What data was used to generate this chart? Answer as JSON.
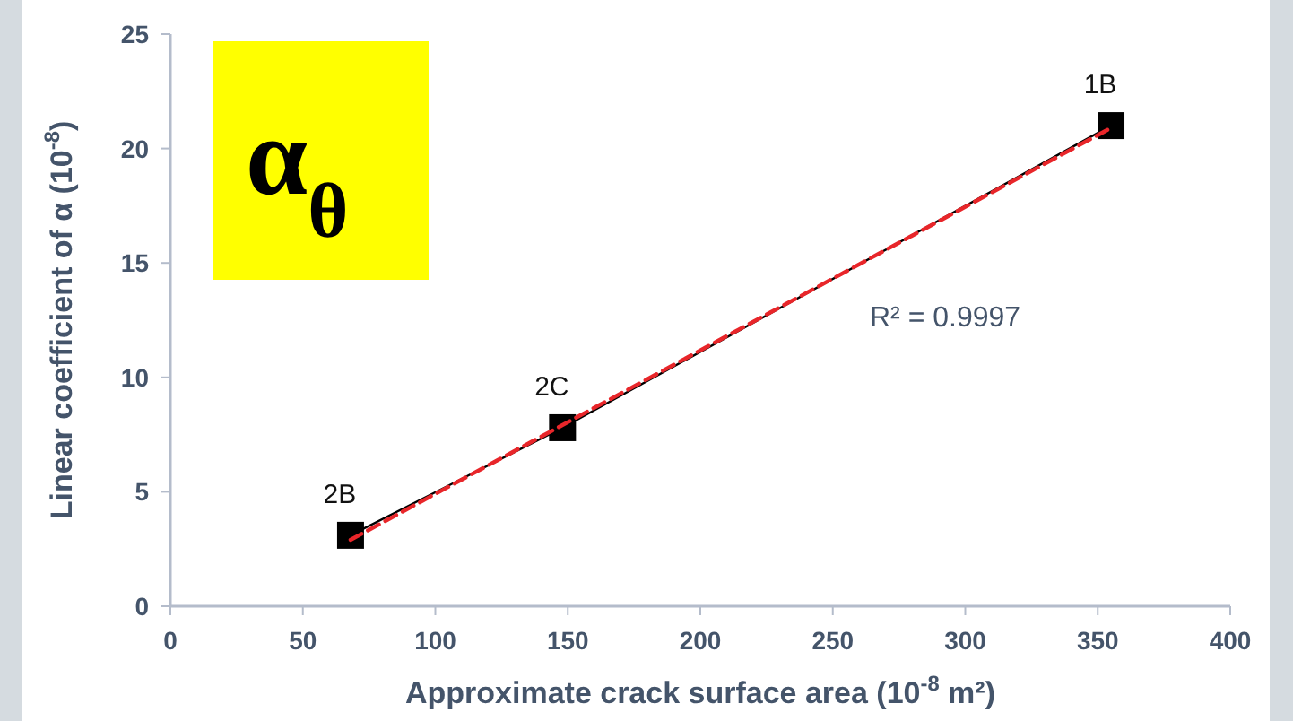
{
  "chart_data": {
    "type": "line",
    "xlabel": "Approximate crack surface area (10$^{-8}$ m²)",
    "ylabel": "Linear coefficient of α (10$^{-8}$)",
    "xlim": [
      0,
      400
    ],
    "xticks": [
      0,
      50,
      100,
      150,
      200,
      250,
      300,
      350,
      400
    ],
    "ylim": [
      0,
      25
    ],
    "yticks": [
      0,
      5,
      10,
      15,
      20,
      25
    ],
    "grid": false,
    "series": [
      {
        "color": "#000000",
        "marker": "square",
        "line_style": "solid",
        "x": [
          68,
          148,
          355
        ],
        "values": [
          3.1,
          7.8,
          21.0
        ]
      },
      {
        "color": "#e8262a",
        "marker": "none",
        "line_style": "dashed",
        "x": [
          68,
          355
        ],
        "values": [
          2.9,
          20.9
        ]
      }
    ],
    "annotations": [
      {
        "text": "2B",
        "x": 68,
        "y": 3.1
      },
      {
        "text": "2C",
        "x": 148,
        "y": 7.8
      },
      {
        "text": "1B",
        "x": 355,
        "y": 21.0
      },
      "R² = 0.9997",
      "α$_{θ}$"
    ]
  }
}
